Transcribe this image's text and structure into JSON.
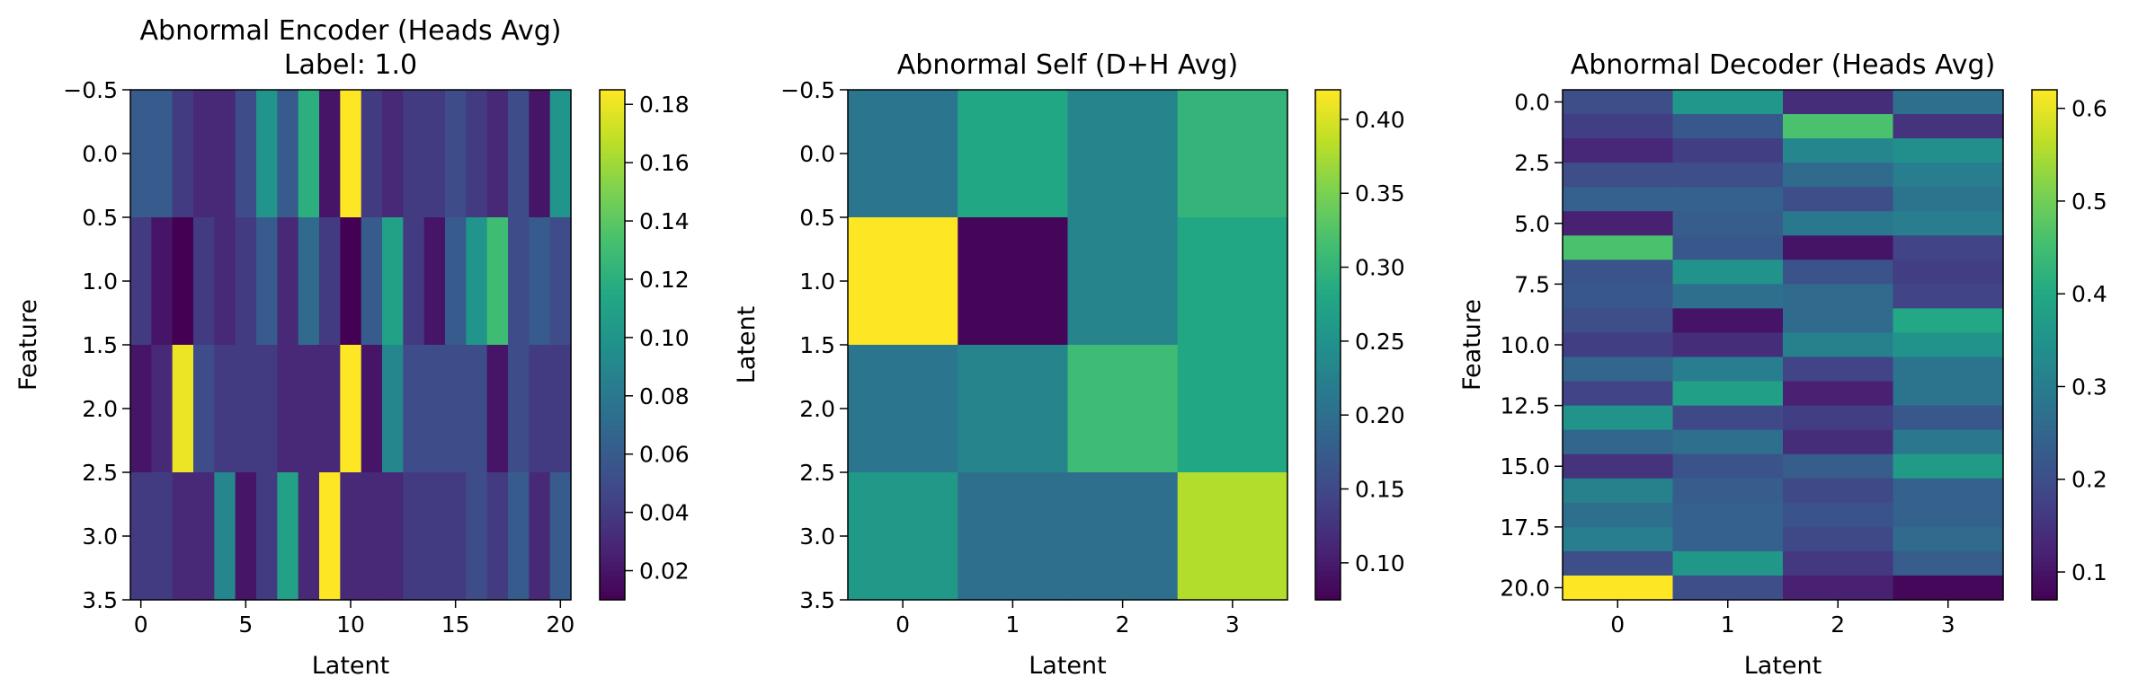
{
  "chart_data": [
    {
      "type": "heatmap",
      "title": "Abnormal Encoder (Heads Avg)",
      "subtitle": "Label: 1.0",
      "xlabel": "Latent",
      "ylabel": "Feature",
      "xticks": [
        "0",
        "5",
        "10",
        "15",
        "20"
      ],
      "yticks": [
        "−0.5",
        "0.0",
        "0.5",
        "1.0",
        "1.5",
        "2.0",
        "2.5",
        "3.0",
        "3.5"
      ],
      "colorbar_ticks": [
        "0.02",
        "0.04",
        "0.06",
        "0.08",
        "0.10",
        "0.12",
        "0.14",
        "0.16",
        "0.18"
      ],
      "vmin": 0.01,
      "vmax": 0.185,
      "colormap": "viridis",
      "values": [
        [
          0.06,
          0.06,
          0.04,
          0.03,
          0.03,
          0.05,
          0.1,
          0.06,
          0.12,
          0.02,
          0.185,
          0.04,
          0.03,
          0.04,
          0.04,
          0.05,
          0.04,
          0.03,
          0.05,
          0.02,
          0.1
        ],
        [
          0.04,
          0.02,
          0.01,
          0.04,
          0.03,
          0.04,
          0.06,
          0.03,
          0.07,
          0.04,
          0.01,
          0.06,
          0.11,
          0.04,
          0.02,
          0.06,
          0.1,
          0.13,
          0.05,
          0.06,
          0.05
        ],
        [
          0.02,
          0.03,
          0.18,
          0.05,
          0.04,
          0.04,
          0.04,
          0.03,
          0.03,
          0.03,
          0.185,
          0.02,
          0.09,
          0.05,
          0.05,
          0.05,
          0.05,
          0.02,
          0.05,
          0.04,
          0.04
        ],
        [
          0.04,
          0.04,
          0.03,
          0.03,
          0.09,
          0.02,
          0.04,
          0.11,
          0.03,
          0.185,
          0.03,
          0.03,
          0.03,
          0.04,
          0.04,
          0.04,
          0.05,
          0.04,
          0.06,
          0.03,
          0.06
        ]
      ]
    },
    {
      "type": "heatmap",
      "title": "Abnormal Self (D+H Avg)",
      "xlabel": "Latent",
      "ylabel": "Latent",
      "xticks": [
        "0",
        "1",
        "2",
        "3"
      ],
      "yticks": [
        "−0.5",
        "0.0",
        "0.5",
        "1.0",
        "1.5",
        "2.0",
        "2.5",
        "3.0",
        "3.5"
      ],
      "colorbar_ticks": [
        "0.10",
        "0.15",
        "0.20",
        "0.25",
        "0.30",
        "0.35",
        "0.40"
      ],
      "vmin": 0.075,
      "vmax": 0.42,
      "colormap": "viridis",
      "values": [
        [
          0.21,
          0.28,
          0.23,
          0.3
        ],
        [
          0.42,
          0.08,
          0.23,
          0.28
        ],
        [
          0.21,
          0.23,
          0.31,
          0.28
        ],
        [
          0.26,
          0.2,
          0.2,
          0.38
        ]
      ]
    },
    {
      "type": "heatmap",
      "title": "Abnormal Decoder (Heads Avg)",
      "xlabel": "Latent",
      "ylabel": "Feature",
      "xticks": [
        "0",
        "1",
        "2",
        "3"
      ],
      "yticks": [
        "0.0",
        "2.5",
        "5.0",
        "7.5",
        "10.0",
        "12.5",
        "15.0",
        "17.5",
        "20.0"
      ],
      "colorbar_ticks": [
        "0.1",
        "0.2",
        "0.3",
        "0.4",
        "0.5",
        "0.6"
      ],
      "vmin": 0.07,
      "vmax": 0.62,
      "colormap": "viridis",
      "values": [
        [
          0.2,
          0.36,
          0.14,
          0.27
        ],
        [
          0.17,
          0.22,
          0.46,
          0.15
        ],
        [
          0.13,
          0.17,
          0.32,
          0.34
        ],
        [
          0.2,
          0.2,
          0.26,
          0.3
        ],
        [
          0.24,
          0.24,
          0.2,
          0.28
        ],
        [
          0.12,
          0.23,
          0.29,
          0.3
        ],
        [
          0.46,
          0.22,
          0.1,
          0.18
        ],
        [
          0.21,
          0.35,
          0.21,
          0.17
        ],
        [
          0.22,
          0.27,
          0.26,
          0.18
        ],
        [
          0.2,
          0.1,
          0.26,
          0.4
        ],
        [
          0.17,
          0.14,
          0.31,
          0.35
        ],
        [
          0.25,
          0.3,
          0.18,
          0.28
        ],
        [
          0.18,
          0.38,
          0.12,
          0.28
        ],
        [
          0.35,
          0.19,
          0.17,
          0.22
        ],
        [
          0.25,
          0.27,
          0.14,
          0.29
        ],
        [
          0.15,
          0.21,
          0.23,
          0.37
        ],
        [
          0.31,
          0.23,
          0.19,
          0.24
        ],
        [
          0.27,
          0.24,
          0.21,
          0.24
        ],
        [
          0.3,
          0.24,
          0.19,
          0.26
        ],
        [
          0.2,
          0.36,
          0.16,
          0.23
        ],
        [
          0.62,
          0.2,
          0.12,
          0.08
        ]
      ]
    }
  ]
}
